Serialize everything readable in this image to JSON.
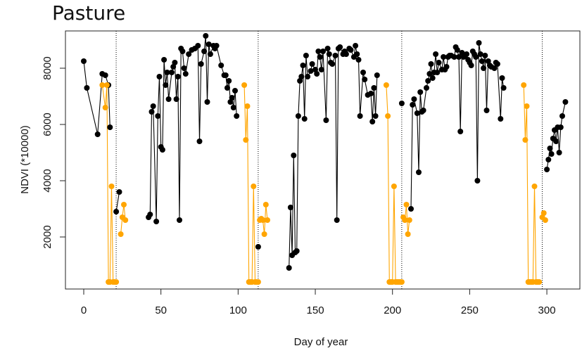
{
  "chart_data": {
    "type": "scatter",
    "title": "Pasture",
    "xlabel": "Day of year",
    "ylabel": "NDVI (*10000)",
    "xlim": [
      -5,
      320
    ],
    "ylim": [
      100,
      9400
    ],
    "x_ticks": [
      0,
      50,
      100,
      150,
      200,
      250,
      300
    ],
    "y_ticks": [
      2000,
      4000,
      6000,
      8000
    ],
    "vlines": [
      21,
      113,
      206,
      297
    ],
    "series": [
      {
        "color": "#000000",
        "segments": [
          [
            [
              0,
              8250
            ],
            [
              2,
              7300
            ],
            [
              9,
              5650
            ],
            [
              12,
              7800
            ],
            [
              14,
              7750
            ],
            [
              16,
              7400
            ],
            [
              17,
              5900
            ]
          ],
          [
            [
              21,
              2900
            ],
            [
              23,
              3600
            ]
          ],
          [
            [
              42,
              2700
            ],
            [
              43,
              2800
            ],
            [
              44,
              6450
            ],
            [
              45,
              6650
            ],
            [
              47,
              2550
            ],
            [
              48,
              6300
            ],
            [
              49,
              7700
            ],
            [
              50,
              5200
            ],
            [
              51,
              5100
            ],
            [
              52,
              8300
            ],
            [
              53,
              7400
            ],
            [
              54,
              7850
            ],
            [
              55,
              6900
            ],
            [
              57,
              7850
            ],
            [
              58,
              8050
            ],
            [
              59,
              8200
            ],
            [
              60,
              6900
            ],
            [
              61,
              7700
            ],
            [
              62,
              2600
            ],
            [
              63,
              8700
            ],
            [
              64,
              8600
            ],
            [
              65,
              8000
            ],
            [
              66,
              7800
            ],
            [
              68,
              8500
            ],
            [
              70,
              8650
            ],
            [
              72,
              8700
            ],
            [
              74,
              8800
            ],
            [
              75,
              5400
            ],
            [
              76,
              8150
            ],
            [
              78,
              8600
            ],
            [
              79,
              9150
            ],
            [
              80,
              6800
            ],
            [
              81,
              8850
            ],
            [
              82,
              8500
            ],
            [
              84,
              8800
            ],
            [
              85,
              8700
            ],
            [
              86,
              8800
            ],
            [
              89,
              8100
            ],
            [
              91,
              7750
            ],
            [
              92,
              7750
            ],
            [
              93,
              7300
            ],
            [
              94,
              7550
            ],
            [
              95,
              6800
            ],
            [
              96,
              6950
            ],
            [
              97,
              6600
            ],
            [
              98,
              7200
            ],
            [
              99,
              6300
            ]
          ],
          [
            [
              113,
              1650
            ]
          ],
          [
            [
              133,
              900
            ],
            [
              134,
              3050
            ],
            [
              135,
              1350
            ],
            [
              136,
              4900
            ],
            [
              137,
              1450
            ],
            [
              138,
              1500
            ],
            [
              139,
              6300
            ],
            [
              140,
              7550
            ],
            [
              141,
              7700
            ],
            [
              142,
              8100
            ],
            [
              143,
              6200
            ],
            [
              144,
              8450
            ],
            [
              145,
              7700
            ],
            [
              147,
              7900
            ],
            [
              148,
              8150
            ],
            [
              150,
              7950
            ],
            [
              151,
              7800
            ],
            [
              152,
              8600
            ],
            [
              153,
              8400
            ],
            [
              154,
              7950
            ],
            [
              155,
              8600
            ],
            [
              157,
              6150
            ],
            [
              158,
              8700
            ],
            [
              159,
              8500
            ],
            [
              160,
              8200
            ],
            [
              161,
              8150
            ],
            [
              163,
              8450
            ],
            [
              164,
              2600
            ],
            [
              165,
              8700
            ],
            [
              166,
              8750
            ],
            [
              168,
              8500
            ],
            [
              169,
              8600
            ],
            [
              170,
              8500
            ],
            [
              172,
              8700
            ],
            [
              173,
              8650
            ],
            [
              175,
              8400
            ],
            [
              176,
              8800
            ],
            [
              177,
              8500
            ],
            [
              178,
              8300
            ],
            [
              179,
              6300
            ],
            [
              181,
              7850
            ],
            [
              182,
              7600
            ],
            [
              184,
              7050
            ],
            [
              186,
              7100
            ],
            [
              187,
              6100
            ],
            [
              188,
              7300
            ],
            [
              189,
              6300
            ],
            [
              190,
              7750
            ]
          ],
          [
            [
              206,
              6750
            ]
          ],
          [
            [
              212,
              3000
            ],
            [
              213,
              6700
            ],
            [
              214,
              6900
            ],
            [
              216,
              6400
            ],
            [
              217,
              4300
            ],
            [
              218,
              7150
            ],
            [
              219,
              6450
            ],
            [
              220,
              6500
            ],
            [
              222,
              7300
            ],
            [
              223,
              7550
            ],
            [
              224,
              7800
            ],
            [
              225,
              8150
            ],
            [
              226,
              7650
            ],
            [
              227,
              7850
            ],
            [
              228,
              8500
            ],
            [
              229,
              7850
            ],
            [
              230,
              8200
            ],
            [
              232,
              7950
            ],
            [
              233,
              8400
            ],
            [
              234,
              7950
            ],
            [
              235,
              8050
            ],
            [
              236,
              8400
            ],
            [
              237,
              8450
            ],
            [
              238,
              8450
            ],
            [
              240,
              8400
            ],
            [
              241,
              8750
            ],
            [
              242,
              8650
            ],
            [
              243,
              8400
            ],
            [
              244,
              5750
            ],
            [
              245,
              8550
            ],
            [
              246,
              8400
            ],
            [
              247,
              8450
            ],
            [
              248,
              8500
            ],
            [
              249,
              8300
            ],
            [
              250,
              8200
            ],
            [
              251,
              8100
            ],
            [
              252,
              8600
            ],
            [
              253,
              8500
            ],
            [
              254,
              8400
            ],
            [
              255,
              4000
            ],
            [
              256,
              8900
            ],
            [
              257,
              8500
            ],
            [
              258,
              8250
            ],
            [
              259,
              8000
            ],
            [
              260,
              8450
            ],
            [
              261,
              6500
            ],
            [
              262,
              8250
            ],
            [
              263,
              8100
            ],
            [
              264,
              8050
            ],
            [
              266,
              8000
            ],
            [
              267,
              8200
            ],
            [
              268,
              8150
            ],
            [
              270,
              6200
            ],
            [
              271,
              7650
            ],
            [
              272,
              7300
            ]
          ],
          [
            [
              300,
              4400
            ],
            [
              301,
              4750
            ],
            [
              302,
              5150
            ],
            [
              303,
              4950
            ],
            [
              304,
              5500
            ],
            [
              305,
              5800
            ],
            [
              306,
              5400
            ],
            [
              307,
              5900
            ],
            [
              308,
              5000
            ],
            [
              309,
              5900
            ],
            [
              310,
              6300
            ],
            [
              312,
              6800
            ]
          ]
        ]
      },
      {
        "color": "#FFA500",
        "segments": [
          [
            [
              12,
              7400
            ],
            [
              14,
              6600
            ],
            [
              15,
              7400
            ],
            [
              16,
              400
            ],
            [
              17,
              400
            ],
            [
              18,
              3800
            ],
            [
              19,
              400
            ],
            [
              20,
              400
            ],
            [
              21,
              400
            ]
          ],
          [
            [
              24,
              2100
            ],
            [
              25,
              2700
            ],
            [
              26,
              3150
            ],
            [
              27,
              2600
            ]
          ],
          [
            [
              104,
              7400
            ],
            [
              105,
              5450
            ],
            [
              106,
              6650
            ],
            [
              107,
              400
            ],
            [
              108,
              400
            ],
            [
              109,
              400
            ],
            [
              110,
              3800
            ],
            [
              111,
              400
            ],
            [
              112,
              400
            ],
            [
              113,
              400
            ]
          ],
          [
            [
              114,
              2600
            ],
            [
              115,
              2650
            ],
            [
              116,
              2600
            ],
            [
              117,
              2100
            ],
            [
              118,
              3150
            ],
            [
              119,
              2600
            ]
          ],
          [
            [
              196,
              7400
            ],
            [
              197,
              6300
            ],
            [
              198,
              400
            ],
            [
              199,
              400
            ],
            [
              200,
              400
            ],
            [
              201,
              3800
            ],
            [
              202,
              400
            ],
            [
              203,
              400
            ],
            [
              204,
              400
            ],
            [
              205,
              400
            ],
            [
              206,
              400
            ]
          ],
          [
            [
              207,
              2700
            ],
            [
              208,
              2600
            ],
            [
              209,
              3150
            ],
            [
              210,
              2100
            ],
            [
              211,
              2600
            ]
          ],
          [
            [
              285,
              7400
            ],
            [
              286,
              5450
            ],
            [
              287,
              6650
            ],
            [
              288,
              400
            ],
            [
              289,
              400
            ],
            [
              290,
              400
            ],
            [
              291,
              400
            ],
            [
              292,
              3800
            ],
            [
              293,
              400
            ],
            [
              294,
              400
            ],
            [
              295,
              400
            ]
          ],
          [
            [
              297,
              2700
            ],
            [
              298,
              2850
            ],
            [
              299,
              2600
            ]
          ]
        ]
      }
    ]
  }
}
